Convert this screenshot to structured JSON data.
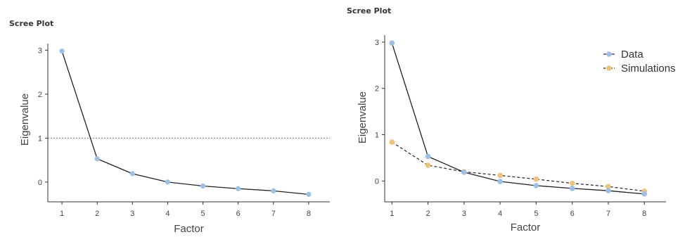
{
  "colors": {
    "data": "#9dbfe6",
    "simulations": "#edc27c",
    "line": "#333333",
    "ref": "#777777"
  },
  "chart_data": [
    {
      "type": "line",
      "title": "Scree Plot",
      "xlabel": "Factor",
      "ylabel": "Eigenvalue",
      "x": [
        1,
        2,
        3,
        4,
        5,
        6,
        7,
        8
      ],
      "xticks": [
        "1",
        "2",
        "3",
        "4",
        "5",
        "6",
        "7",
        "8"
      ],
      "yticks": [
        "0",
        "1",
        "2",
        "3"
      ],
      "ylim": [
        -0.45,
        3.15
      ],
      "xlim": [
        0.6,
        8.6
      ],
      "reference_line": 1,
      "series": [
        {
          "values": [
            2.98,
            0.53,
            0.19,
            0.0,
            -0.09,
            -0.15,
            -0.2,
            -0.28
          ]
        }
      ],
      "legend": null
    },
    {
      "type": "line",
      "title": "Scree Plot",
      "xlabel": "Factor",
      "ylabel": "Eigenvalue",
      "x": [
        1,
        2,
        3,
        4,
        5,
        6,
        7,
        8
      ],
      "xticks": [
        "1",
        "2",
        "3",
        "4",
        "5",
        "6",
        "7",
        "8"
      ],
      "yticks": [
        "0",
        "1",
        "2",
        "3"
      ],
      "ylim": [
        -0.45,
        3.15
      ],
      "xlim": [
        0.8,
        8.6
      ],
      "series": [
        {
          "name": "Data",
          "values": [
            2.98,
            0.53,
            0.19,
            -0.01,
            -0.1,
            -0.16,
            -0.21,
            -0.28
          ]
        },
        {
          "name": "Simulations",
          "values": [
            0.84,
            0.34,
            0.2,
            0.12,
            0.04,
            -0.05,
            -0.12,
            -0.22
          ]
        }
      ],
      "legend": "top-right"
    }
  ]
}
